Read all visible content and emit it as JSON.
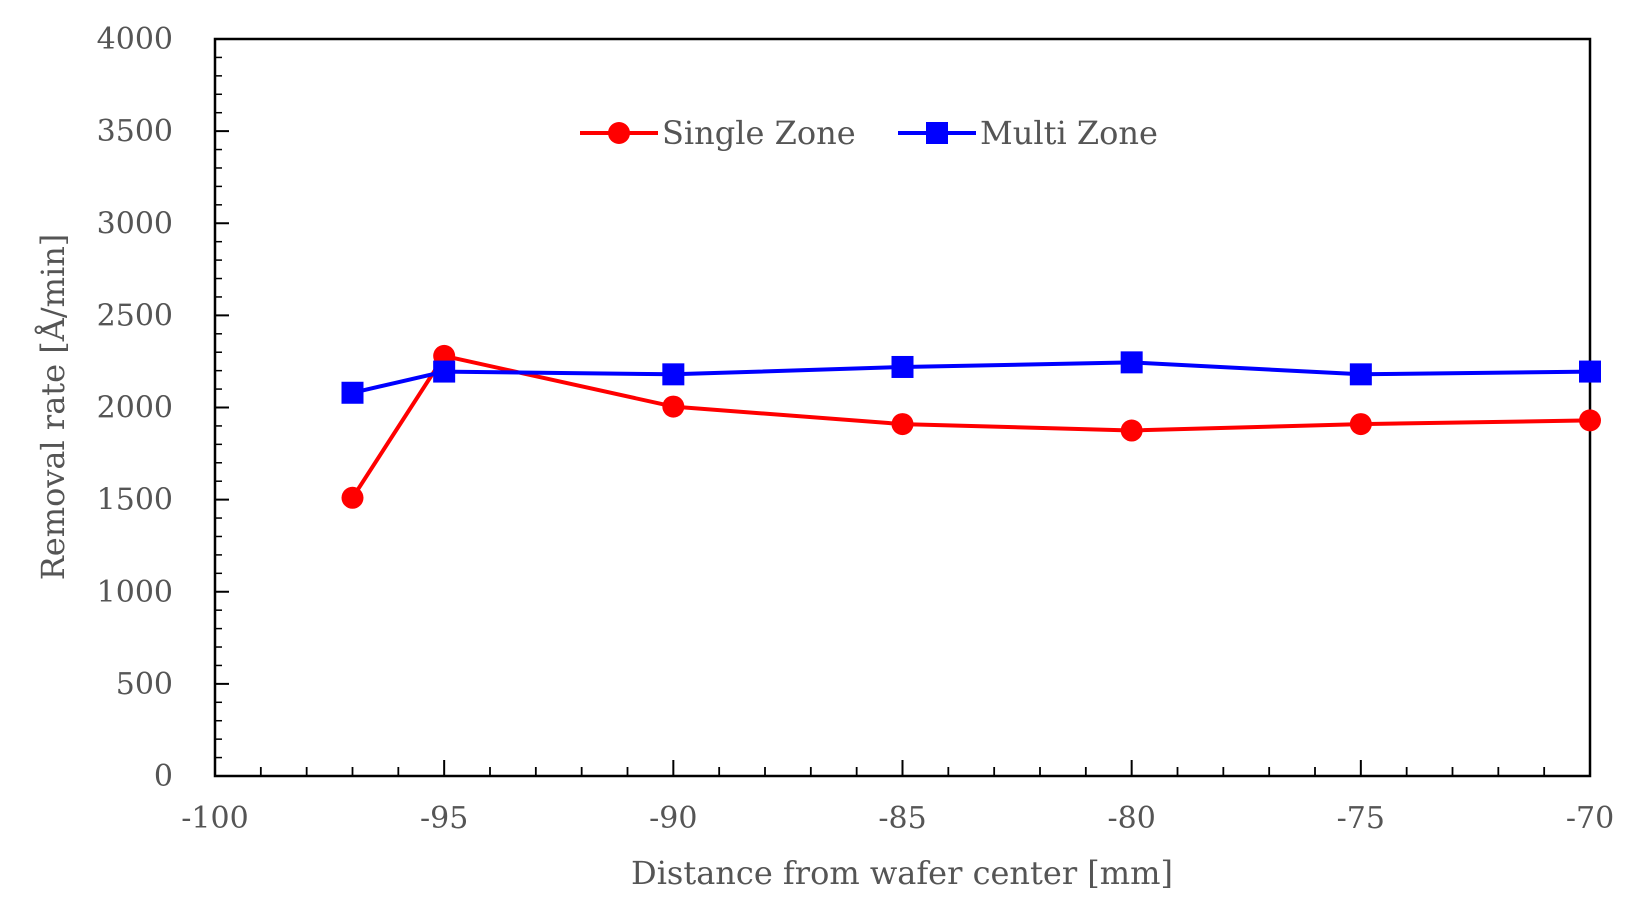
{
  "chart_data": {
    "type": "line",
    "title": "",
    "xlabel": "Distance from wafer center [mm]",
    "ylabel": "Removal rate [Å/min]",
    "xlim": [
      -100,
      -70
    ],
    "ylim": [
      0,
      4000
    ],
    "x_ticks": [
      -100,
      -95,
      -90,
      -85,
      -80,
      -75,
      -70
    ],
    "x_tick_labels": [
      "-100",
      "-95",
      "-90",
      "-85",
      "-80",
      "-75",
      "-70"
    ],
    "y_ticks": [
      0,
      500,
      1000,
      1500,
      2000,
      2500,
      3000,
      3500,
      4000
    ],
    "y_tick_labels": [
      "0",
      "500",
      "1000",
      "1500",
      "2000",
      "2500",
      "3000",
      "3500",
      "4000"
    ],
    "x_minor_step": 1,
    "y_minor_step": 100,
    "grid": false,
    "legend_position": "top-center",
    "series": [
      {
        "name": "Single Zone",
        "color": "#ff0000",
        "marker": "circle",
        "x": [
          -97,
          -95,
          -90,
          -85,
          -80,
          -75,
          -70
        ],
        "y": [
          1510,
          2280,
          2005,
          1910,
          1875,
          1910,
          1930
        ]
      },
      {
        "name": "Multi Zone",
        "color": "#0000ff",
        "marker": "square",
        "x": [
          -97,
          -95,
          -90,
          -85,
          -80,
          -75,
          -70
        ],
        "y": [
          2080,
          2195,
          2180,
          2220,
          2245,
          2180,
          2195
        ]
      }
    ]
  }
}
